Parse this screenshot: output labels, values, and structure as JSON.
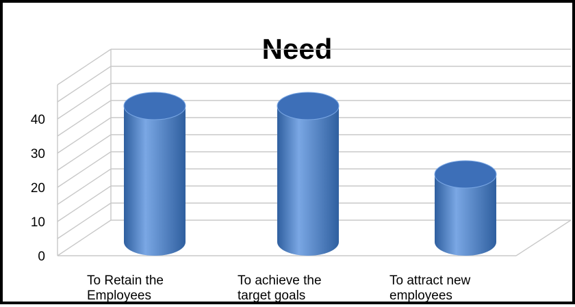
{
  "chart_data": {
    "type": "bar",
    "style": "3d-cylinder",
    "title": "Need",
    "categories": [
      [
        "To Retain the",
        "Employees"
      ],
      [
        "To achieve the",
        "target goals"
      ],
      [
        "To attract new",
        "employees"
      ]
    ],
    "values": [
      41,
      41,
      21
    ],
    "ylim": [
      0,
      50
    ],
    "yticks": [
      0,
      10,
      20,
      30,
      40
    ],
    "grid": true,
    "legend": "none",
    "colors": {
      "bar": "#4a7ec9",
      "bar_light": "#7aa7e4",
      "bar_dark": "#2f5f9f",
      "top": "#3d6fb8",
      "grid": "#c8c8c8"
    }
  }
}
